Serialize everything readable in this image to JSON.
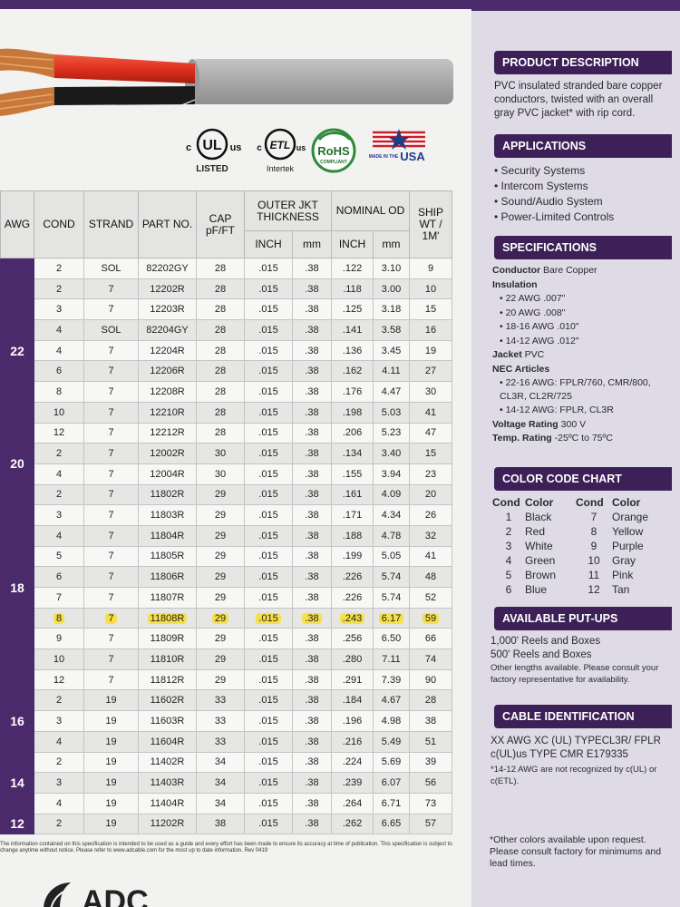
{
  "table": {
    "headers": {
      "awg": "AWG",
      "cond": "COND",
      "strand": "STRAND",
      "part_no": "PART NO.",
      "cap": "CAP pF/FT",
      "outer_jkt": "OUTER JKT THICKNESS",
      "nominal_od": "NOMINAL OD",
      "inch": "INCH",
      "mm": "mm",
      "ship": "SHIP WT / 1M'"
    },
    "groups": [
      {
        "awg": "22",
        "rows": [
          [
            "2",
            "SOL",
            "82202GY",
            "28",
            ".015",
            ".38",
            ".122",
            "3.10",
            "9"
          ],
          [
            "2",
            "7",
            "12202R",
            "28",
            ".015",
            ".38",
            ".118",
            "3.00",
            "10"
          ],
          [
            "3",
            "7",
            "12203R",
            "28",
            ".015",
            ".38",
            ".125",
            "3.18",
            "15"
          ],
          [
            "4",
            "SOL",
            "82204GY",
            "28",
            ".015",
            ".38",
            ".141",
            "3.58",
            "16"
          ],
          [
            "4",
            "7",
            "12204R",
            "28",
            ".015",
            ".38",
            ".136",
            "3.45",
            "19"
          ],
          [
            "6",
            "7",
            "12206R",
            "28",
            ".015",
            ".38",
            ".162",
            "4.11",
            "27"
          ],
          [
            "8",
            "7",
            "12208R",
            "28",
            ".015",
            ".38",
            ".176",
            "4.47",
            "30"
          ],
          [
            "10",
            "7",
            "12210R",
            "28",
            ".015",
            ".38",
            ".198",
            "5.03",
            "41"
          ],
          [
            "12",
            "7",
            "12212R",
            "28",
            ".015",
            ".38",
            ".206",
            "5.23",
            "47"
          ]
        ]
      },
      {
        "awg": "20",
        "rows": [
          [
            "2",
            "7",
            "12002R",
            "30",
            ".015",
            ".38",
            ".134",
            "3.40",
            "15"
          ],
          [
            "4",
            "7",
            "12004R",
            "30",
            ".015",
            ".38",
            ".155",
            "3.94",
            "23"
          ]
        ]
      },
      {
        "awg": "18",
        "rows": [
          [
            "2",
            "7",
            "11802R",
            "29",
            ".015",
            ".38",
            ".161",
            "4.09",
            "20"
          ],
          [
            "3",
            "7",
            "11803R",
            "29",
            ".015",
            ".38",
            ".171",
            "4.34",
            "26"
          ],
          [
            "4",
            "7",
            "11804R",
            "29",
            ".015",
            ".38",
            ".188",
            "4.78",
            "32"
          ],
          [
            "5",
            "7",
            "11805R",
            "29",
            ".015",
            ".38",
            ".199",
            "5.05",
            "41"
          ],
          [
            "6",
            "7",
            "11806R",
            "29",
            ".015",
            ".38",
            ".226",
            "5.74",
            "48"
          ],
          [
            "7",
            "7",
            "11807R",
            "29",
            ".015",
            ".38",
            ".226",
            "5.74",
            "52"
          ],
          [
            "8",
            "7",
            "11808R",
            "29",
            ".015",
            ".38",
            ".243",
            "6.17",
            "59"
          ],
          [
            "9",
            "7",
            "11809R",
            "29",
            ".015",
            ".38",
            ".256",
            "6.50",
            "66"
          ],
          [
            "10",
            "7",
            "11810R",
            "29",
            ".015",
            ".38",
            ".280",
            "7.11",
            "74"
          ],
          [
            "12",
            "7",
            "11812R",
            "29",
            ".015",
            ".38",
            ".291",
            "7.39",
            "90"
          ]
        ]
      },
      {
        "awg": "16",
        "rows": [
          [
            "2",
            "19",
            "11602R",
            "33",
            ".015",
            ".38",
            ".184",
            "4.67",
            "28"
          ],
          [
            "3",
            "19",
            "11603R",
            "33",
            ".015",
            ".38",
            ".196",
            "4.98",
            "38"
          ],
          [
            "4",
            "19",
            "11604R",
            "33",
            ".015",
            ".38",
            ".216",
            "5.49",
            "51"
          ]
        ]
      },
      {
        "awg": "14",
        "rows": [
          [
            "2",
            "19",
            "11402R",
            "34",
            ".015",
            ".38",
            ".224",
            "5.69",
            "39"
          ],
          [
            "3",
            "19",
            "11403R",
            "34",
            ".015",
            ".38",
            ".239",
            "6.07",
            "56"
          ],
          [
            "4",
            "19",
            "11404R",
            "34",
            ".015",
            ".38",
            ".264",
            "6.71",
            "73"
          ]
        ]
      },
      {
        "awg": "12",
        "rows": [
          [
            "2",
            "19",
            "11202R",
            "38",
            ".015",
            ".38",
            ".262",
            "6.65",
            "57"
          ]
        ]
      }
    ],
    "highlighted_part": "11808R"
  },
  "logos": {
    "ul_c": "c",
    "ul_mark": "UL",
    "ul_us": "us",
    "ul_listed": "LISTED",
    "etl_c": "c",
    "etl_mark": "ETL",
    "etl_us": "us",
    "etl_name": "Intertek",
    "rohs": "RoHS",
    "rohs_sub": "COMPLIANT",
    "usa_made": "MADE IN THE",
    "usa": "USA"
  },
  "disclaimer": "The information contained on this specification is intended to be used as a guide and every effort has been made to ensure its accuracy at time of publication. This specification is subject to change anytime without notice. Please refer to www.adcable.com for the most up to date information. Rev 0419",
  "brand": "ADC",
  "sidebar": {
    "product_description": {
      "heading": "PRODUCT DESCRIPTION",
      "text": "PVC insulated stranded bare copper conductors, twisted with an overall gray PVC jacket* with rip cord."
    },
    "applications": {
      "heading": "APPLICATIONS",
      "items": [
        "Security Systems",
        "Intercom Systems",
        "Sound/Audio System",
        "Power-Limited Controls"
      ]
    },
    "specifications": {
      "heading": "SPECIFICATIONS",
      "conductor_label": "Conductor",
      "conductor_value": "Bare Copper",
      "insulation_label": "Insulation",
      "insulation_items": [
        "• 22 AWG .007\"",
        "• 20 AWG .008\"",
        "• 18-16 AWG .010\"",
        "• 14-12 AWG .012\""
      ],
      "jacket_label": "Jacket",
      "jacket_value": "PVC",
      "nec_label": "NEC Articles",
      "nec_items": [
        "• 22-16 AWG: FPLR/760, CMR/800, CL3R, CL2R/725",
        "• 14-12 AWG: FPLR, CL3R"
      ],
      "voltage_label": "Voltage Rating",
      "voltage_value": "300 V",
      "temp_label": "Temp. Rating",
      "temp_value": "-25ºC to 75ºC"
    },
    "color_code": {
      "heading": "COLOR CODE CHART",
      "col_cond": "Cond",
      "col_color": "Color",
      "left": [
        [
          "1",
          "Black"
        ],
        [
          "2",
          "Red"
        ],
        [
          "3",
          "White"
        ],
        [
          "4",
          "Green"
        ],
        [
          "5",
          "Brown"
        ],
        [
          "6",
          "Blue"
        ]
      ],
      "right": [
        [
          "7",
          "Orange"
        ],
        [
          "8",
          "Yellow"
        ],
        [
          "9",
          "Purple"
        ],
        [
          "10",
          "Gray"
        ],
        [
          "11",
          "Pink"
        ],
        [
          "12",
          "Tan"
        ]
      ]
    },
    "putups": {
      "heading": "AVAILABLE PUT-UPS",
      "line1": "1,000' Reels and Boxes",
      "line2": "500' Reels and Boxes",
      "note": "Other lengths available. Please consult your factory representative for availability."
    },
    "cable_id": {
      "heading": "CABLE IDENTIFICATION",
      "text": "XX AWG XC (UL) TYPECL3R/ FPLR c(UL)us TYPE CMR E179335",
      "note": "*14-12 AWG are not recognized by c(UL) or c(ETL)."
    },
    "other_colors": "*Other colors available upon request. Please consult factory for minimums and lead times."
  },
  "colors": {
    "purple": "#3c2057",
    "highlight": "#f5e04a",
    "jacket": "#a9a9a9",
    "red": "#e0301e",
    "copper": "#c8773a"
  }
}
